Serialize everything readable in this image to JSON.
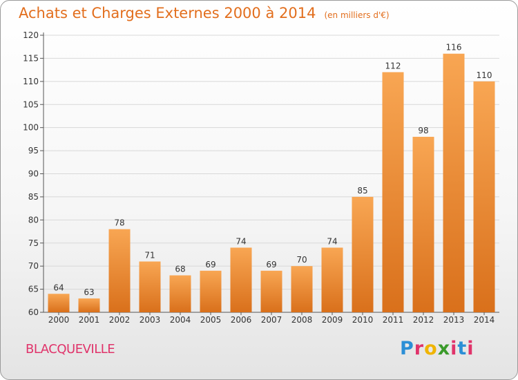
{
  "header": {
    "title": "Achats et Charges Externes 2000 à 2014",
    "unit": "(en milliers d'€)"
  },
  "footer": {
    "commune": "BLACQUEVILLE",
    "logo_letters": [
      "P",
      "r",
      "o",
      "x",
      "i",
      "t",
      "i"
    ],
    "logo_colors": [
      "#2b8fd6",
      "#e0336a",
      "#f0b400",
      "#3a9a2a",
      "#e0336a",
      "#2b8fd6",
      "#e0336a"
    ]
  },
  "chart_data": {
    "type": "bar",
    "categories": [
      "2000",
      "2001",
      "2002",
      "2003",
      "2004",
      "2005",
      "2006",
      "2007",
      "2008",
      "2009",
      "2010",
      "2011",
      "2012",
      "2013",
      "2014"
    ],
    "values": [
      64,
      63,
      78,
      71,
      68,
      69,
      74,
      69,
      70,
      74,
      85,
      112,
      98,
      116,
      110
    ],
    "ylim": [
      60,
      120
    ],
    "yticks": [
      60,
      65,
      70,
      75,
      80,
      85,
      90,
      95,
      100,
      105,
      110,
      115,
      120
    ],
    "grid": true,
    "colors": {
      "bar_top": "#f8a653",
      "bar_bottom": "#d9701b",
      "grid": "#d8d8d8",
      "axis": "#555555"
    }
  }
}
